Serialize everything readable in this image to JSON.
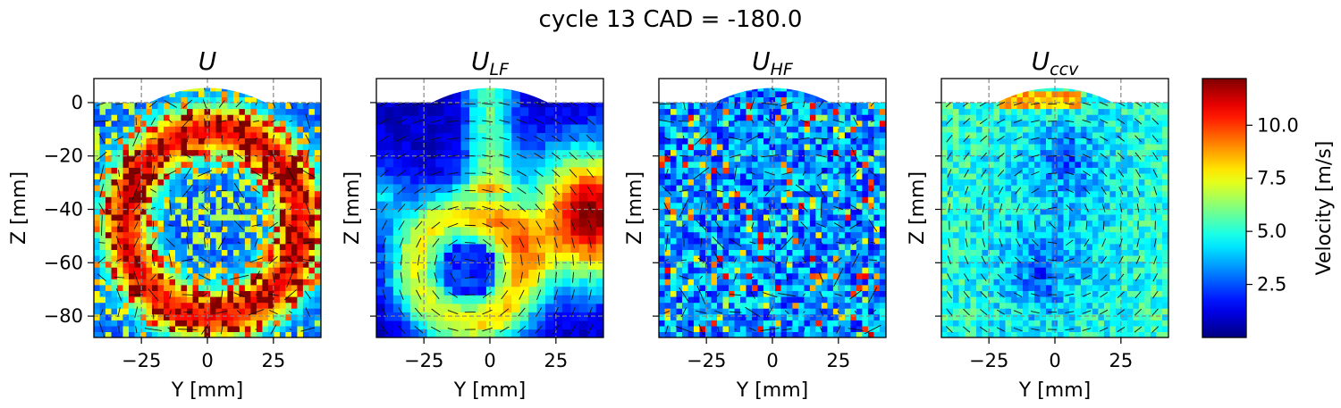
{
  "figure": {
    "title": "cycle 13 CAD = -180.0"
  },
  "colorbar": {
    "label": "Velocity [m/s]",
    "colormap": "jet",
    "range": [
      0.0,
      12.2
    ],
    "ticks": [
      2.5,
      5.0,
      7.5,
      10.0
    ],
    "tick_labels": [
      "2.5",
      "5.0",
      "7.5",
      "10.0"
    ]
  },
  "chart_data": [
    {
      "type": "heatmap",
      "title": "U",
      "title_subscript": "",
      "xlabel": "Y [mm]",
      "ylabel": "Z [mm]",
      "xlim": [
        -43,
        43
      ],
      "ylim": [
        -88,
        9
      ],
      "xticks": [
        -25,
        0,
        25
      ],
      "xtick_labels": [
        "−25",
        "0",
        "25"
      ],
      "yticks": [
        0,
        -20,
        -40,
        -60,
        -80
      ],
      "ytick_labels": [
        "0",
        "−20",
        "−40",
        "−60",
        "−80"
      ],
      "show_ytick_labels": true,
      "grid": true,
      "overlay": "velocity vectors",
      "field": "full",
      "note": "instantaneous velocity magnitude, high values (~10-12 m/s) in ring around tumble vortex"
    },
    {
      "type": "heatmap",
      "title": "U",
      "title_subscript": "LF",
      "xlabel": "Y [mm]",
      "ylabel": "Z [mm]",
      "xlim": [
        -43,
        43
      ],
      "ylim": [
        -88,
        9
      ],
      "xticks": [
        -25,
        0,
        25
      ],
      "xtick_labels": [
        "−25",
        "0",
        "25"
      ],
      "yticks": [
        0,
        -20,
        -40,
        -60,
        -80
      ],
      "ytick_labels": [],
      "show_ytick_labels": false,
      "grid": true,
      "overlay": "velocity vectors",
      "field": "low-frequency",
      "vortex_center": [
        -8,
        -62
      ],
      "max_region": [
        38,
        -42
      ],
      "max_value": 12
    },
    {
      "type": "heatmap",
      "title": "U",
      "title_subscript": "HF",
      "xlabel": "Y [mm]",
      "ylabel": "Z [mm]",
      "xlim": [
        -43,
        43
      ],
      "ylim": [
        -88,
        9
      ],
      "xticks": [
        -25,
        0,
        25
      ],
      "xtick_labels": [
        "−25",
        "0",
        "25"
      ],
      "yticks": [
        0,
        -20,
        -40,
        -60,
        -80
      ],
      "ytick_labels": [],
      "show_ytick_labels": false,
      "grid": true,
      "overlay": "velocity vectors",
      "field": "high-frequency"
    },
    {
      "type": "heatmap",
      "title": "U",
      "title_subscript": "ccv",
      "xlabel": "Y [mm]",
      "ylabel": "Z [mm]",
      "xlim": [
        -43,
        43
      ],
      "ylim": [
        -88,
        9
      ],
      "xticks": [
        -25,
        0,
        25
      ],
      "xtick_labels": [
        "−25",
        "0",
        "25"
      ],
      "yticks": [
        0,
        -20,
        -40,
        -60,
        -80
      ],
      "ytick_labels": [],
      "show_ytick_labels": false,
      "grid": true,
      "overlay": "velocity vectors",
      "field": "cycle-to-cycle variation"
    }
  ]
}
